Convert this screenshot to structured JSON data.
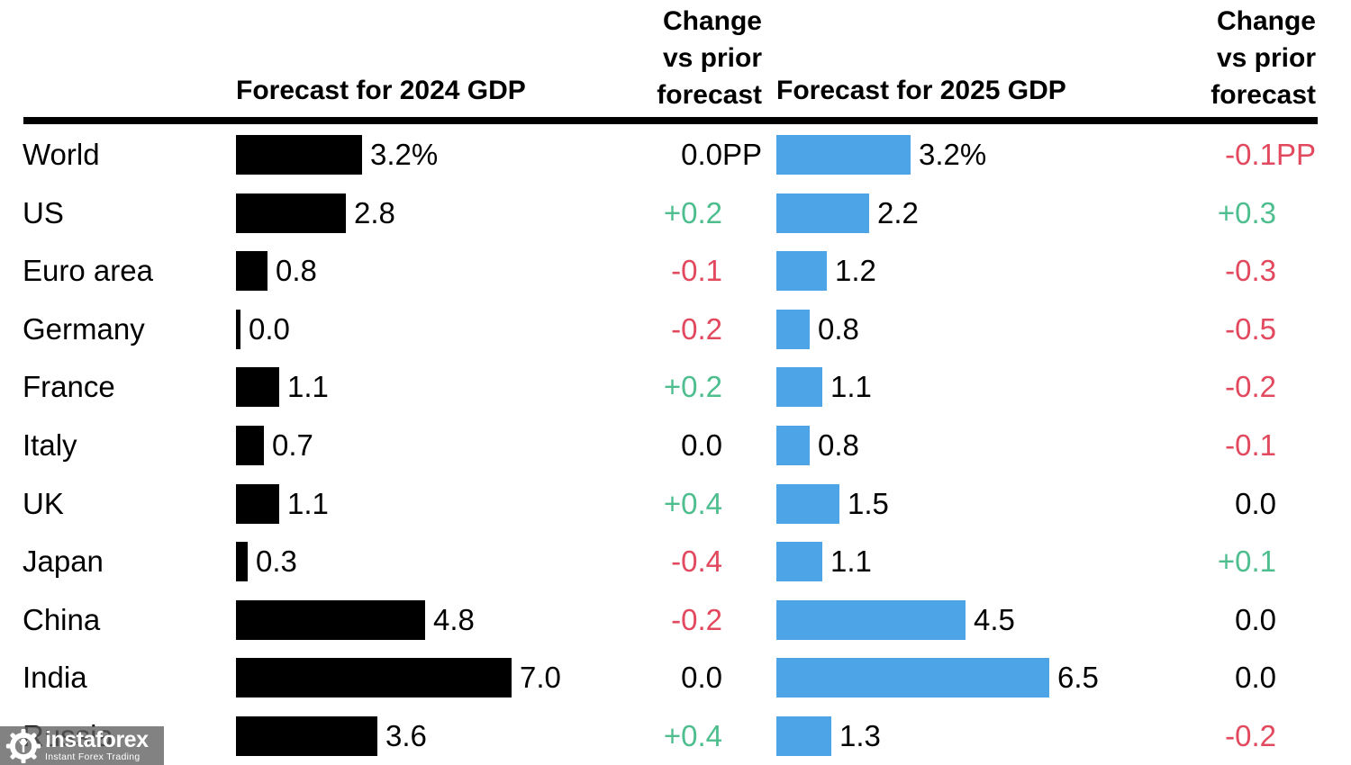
{
  "header": {
    "col_2024_label": "Forecast for 2024 GDP",
    "col_change1_lines": [
      "Change",
      "vs prior",
      "forecast"
    ],
    "col_2025_label": "Forecast for 2025 GDP",
    "col_change2_lines": [
      "Change",
      "vs prior",
      "forecast"
    ]
  },
  "chart_data": {
    "type": "bar",
    "orientation": "horizontal",
    "categories": [
      "World",
      "US",
      "Euro area",
      "Germany",
      "France",
      "Italy",
      "UK",
      "Japan",
      "China",
      "India",
      "Russia"
    ],
    "series": [
      {
        "name": "Forecast for 2024 GDP",
        "unit": "%",
        "color": "#000000",
        "values": [
          3.2,
          2.8,
          0.8,
          0.0,
          1.1,
          0.7,
          1.1,
          0.3,
          4.8,
          7.0,
          3.6
        ]
      },
      {
        "name": "Change vs prior forecast (2024)",
        "unit": "PP",
        "values": [
          "0.0",
          "+0.2",
          "-0.1",
          "-0.2",
          "+0.2",
          "0.0",
          "+0.4",
          "-0.4",
          "-0.2",
          "0.0",
          "+0.4"
        ]
      },
      {
        "name": "Forecast for 2025 GDP",
        "unit": "%",
        "color": "#4DA5E8",
        "values": [
          3.2,
          2.2,
          1.2,
          0.8,
          1.1,
          0.8,
          1.5,
          1.1,
          4.5,
          6.5,
          1.3
        ]
      },
      {
        "name": "Change vs prior forecast (2025)",
        "unit": "PP",
        "values": [
          "-0.1",
          "+0.3",
          "-0.3",
          "-0.5",
          "-0.2",
          "-0.1",
          "0.0",
          "+0.1",
          "0.0",
          "0.0",
          "-0.2"
        ]
      }
    ],
    "rows": [
      {
        "label": "World",
        "f2024": 3.2,
        "f2024_label": "3.2%",
        "chg1": "0.0",
        "chg1_suffix": "PP",
        "f2025": 3.2,
        "f2025_label": "3.2%",
        "chg2": "-0.1",
        "chg2_suffix": "PP"
      },
      {
        "label": "US",
        "f2024": 2.8,
        "f2024_label": "2.8",
        "chg1": "+0.2",
        "chg1_suffix": "",
        "f2025": 2.2,
        "f2025_label": "2.2",
        "chg2": "+0.3",
        "chg2_suffix": ""
      },
      {
        "label": "Euro area",
        "f2024": 0.8,
        "f2024_label": "0.8",
        "chg1": "-0.1",
        "chg1_suffix": "",
        "f2025": 1.2,
        "f2025_label": "1.2",
        "chg2": "-0.3",
        "chg2_suffix": ""
      },
      {
        "label": "Germany",
        "f2024": 0.0,
        "f2024_label": "0.0",
        "chg1": "-0.2",
        "chg1_suffix": "",
        "f2025": 0.8,
        "f2025_label": "0.8",
        "chg2": "-0.5",
        "chg2_suffix": ""
      },
      {
        "label": "France",
        "f2024": 1.1,
        "f2024_label": "1.1",
        "chg1": "+0.2",
        "chg1_suffix": "",
        "f2025": 1.1,
        "f2025_label": "1.1",
        "chg2": "-0.2",
        "chg2_suffix": ""
      },
      {
        "label": "Italy",
        "f2024": 0.7,
        "f2024_label": "0.7",
        "chg1": "0.0",
        "chg1_suffix": "",
        "f2025": 0.8,
        "f2025_label": "0.8",
        "chg2": "-0.1",
        "chg2_suffix": ""
      },
      {
        "label": "UK",
        "f2024": 1.1,
        "f2024_label": "1.1",
        "chg1": "+0.4",
        "chg1_suffix": "",
        "f2025": 1.5,
        "f2025_label": "1.5",
        "chg2": "0.0",
        "chg2_suffix": ""
      },
      {
        "label": "Japan",
        "f2024": 0.3,
        "f2024_label": "0.3",
        "chg1": "-0.4",
        "chg1_suffix": "",
        "f2025": 1.1,
        "f2025_label": "1.1",
        "chg2": "+0.1",
        "chg2_suffix": ""
      },
      {
        "label": "China",
        "f2024": 4.8,
        "f2024_label": "4.8",
        "chg1": "-0.2",
        "chg1_suffix": "",
        "f2025": 4.5,
        "f2025_label": "4.5",
        "chg2": "0.0",
        "chg2_suffix": ""
      },
      {
        "label": "India",
        "f2024": 7.0,
        "f2024_label": "7.0",
        "chg1": "0.0",
        "chg1_suffix": "",
        "f2025": 6.5,
        "f2025_label": "6.5",
        "chg2": "0.0",
        "chg2_suffix": ""
      },
      {
        "label": "Russia",
        "f2024": 3.6,
        "f2024_label": "3.6",
        "chg1": "+0.4",
        "chg1_suffix": "",
        "f2025": 1.3,
        "f2025_label": "1.3",
        "chg2": "-0.2",
        "chg2_suffix": ""
      }
    ]
  },
  "colors": {
    "bar_2024": "#000000",
    "bar_2025": "#4DA5E8",
    "positive": "#4EBE8F",
    "negative": "#E2495E",
    "neutral": "#000000"
  },
  "watermark": {
    "brand": "instaforex",
    "tagline": "Instant Forex Trading"
  }
}
